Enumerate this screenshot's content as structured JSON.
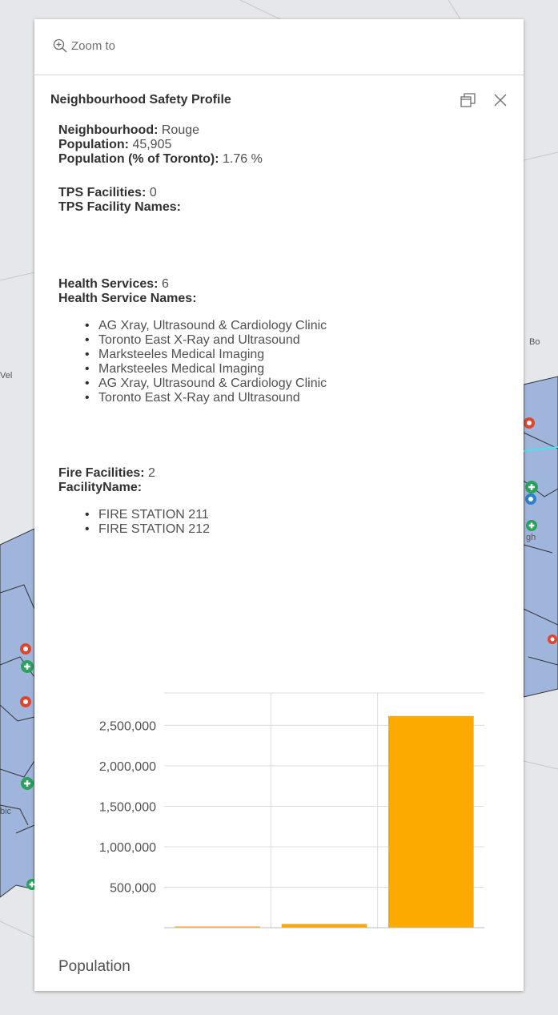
{
  "popup": {
    "zoom_label": "Zoom to",
    "title": "Neighbourhood Safety Profile"
  },
  "profile": {
    "neighbourhood_label": "Neighbourhood:",
    "neighbourhood_value": "Rouge",
    "population_label": "Population:",
    "population_value": "45,905",
    "population_pct_label": "Population (% of Toronto):",
    "population_pct_value": "1.76 %",
    "tps_facilities_label": "TPS Facilities:",
    "tps_facilities_value": "0",
    "tps_names_label": "TPS Facility Names:",
    "health_services_label": "Health Services:",
    "health_services_value": "6",
    "health_names_label": "Health Service Names:",
    "health_services": [
      "AG Xray, Ultrasound & Cardiology Clinic",
      "Toronto East X-Ray and Ultrasound",
      "Marksteeles Medical Imaging",
      "Marksteeles Medical Imaging",
      "AG Xray, Ultrasound & Cardiology Clinic",
      "Toronto East X-Ray and Ultrasound"
    ],
    "fire_facilities_label": "Fire Facilities:",
    "fire_facilities_value": "2",
    "fire_names_label": "FacilityName:",
    "fire_facilities": [
      "FIRE STATION 211",
      "FIRE STATION 212"
    ]
  },
  "map_labels": [
    "Bo",
    "Vel",
    "gh",
    "bic"
  ],
  "colors": {
    "bar": "#fca900",
    "map_fill": "#9fb5dc",
    "map_border": "#333333",
    "health_icon": "#27a35a",
    "fire_icon": "#e0442c",
    "police_icon": "#2c7fc9"
  },
  "chart_data": {
    "type": "bar",
    "categories": [
      "",
      "",
      ""
    ],
    "values": [
      2000,
      45905,
      2615000
    ],
    "ylim": [
      0,
      2900000
    ],
    "yticks": [
      500000,
      1000000,
      1500000,
      2000000,
      2500000
    ],
    "ytick_labels": [
      "500,000",
      "1,000,000",
      "1,500,000",
      "2,000,000",
      "2,500,000"
    ],
    "xlabel": "Population",
    "grid": true,
    "color": "#fca900"
  }
}
